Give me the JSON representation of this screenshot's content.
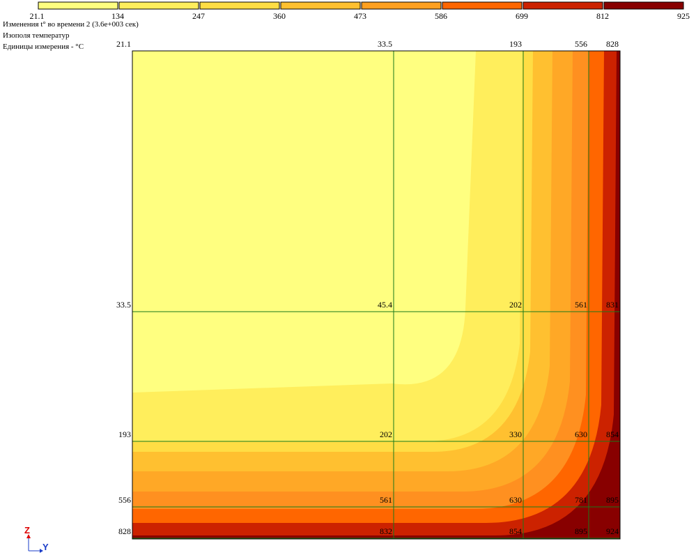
{
  "header": {
    "lines": [
      "Изменения t° во времени 2 (3.6e+003 сек)",
      "Изополя температур",
      "Единицы измерения - °C"
    ]
  },
  "legend": {
    "labels": [
      "21.1",
      "134",
      "247",
      "360",
      "473",
      "586",
      "699",
      "812",
      "925"
    ]
  },
  "axes": {
    "vertical": "Z",
    "horizontal": "Y"
  },
  "nodes": [
    [
      "21.1",
      "33.5",
      "193",
      "556",
      "828"
    ],
    [
      "33.5",
      "45.4",
      "202",
      "561",
      "831"
    ],
    [
      "193",
      "202",
      "330",
      "630",
      "854"
    ],
    [
      "556",
      "561",
      "630",
      "781",
      "895"
    ],
    [
      "828",
      "832",
      "854",
      "895",
      "924"
    ]
  ]
}
